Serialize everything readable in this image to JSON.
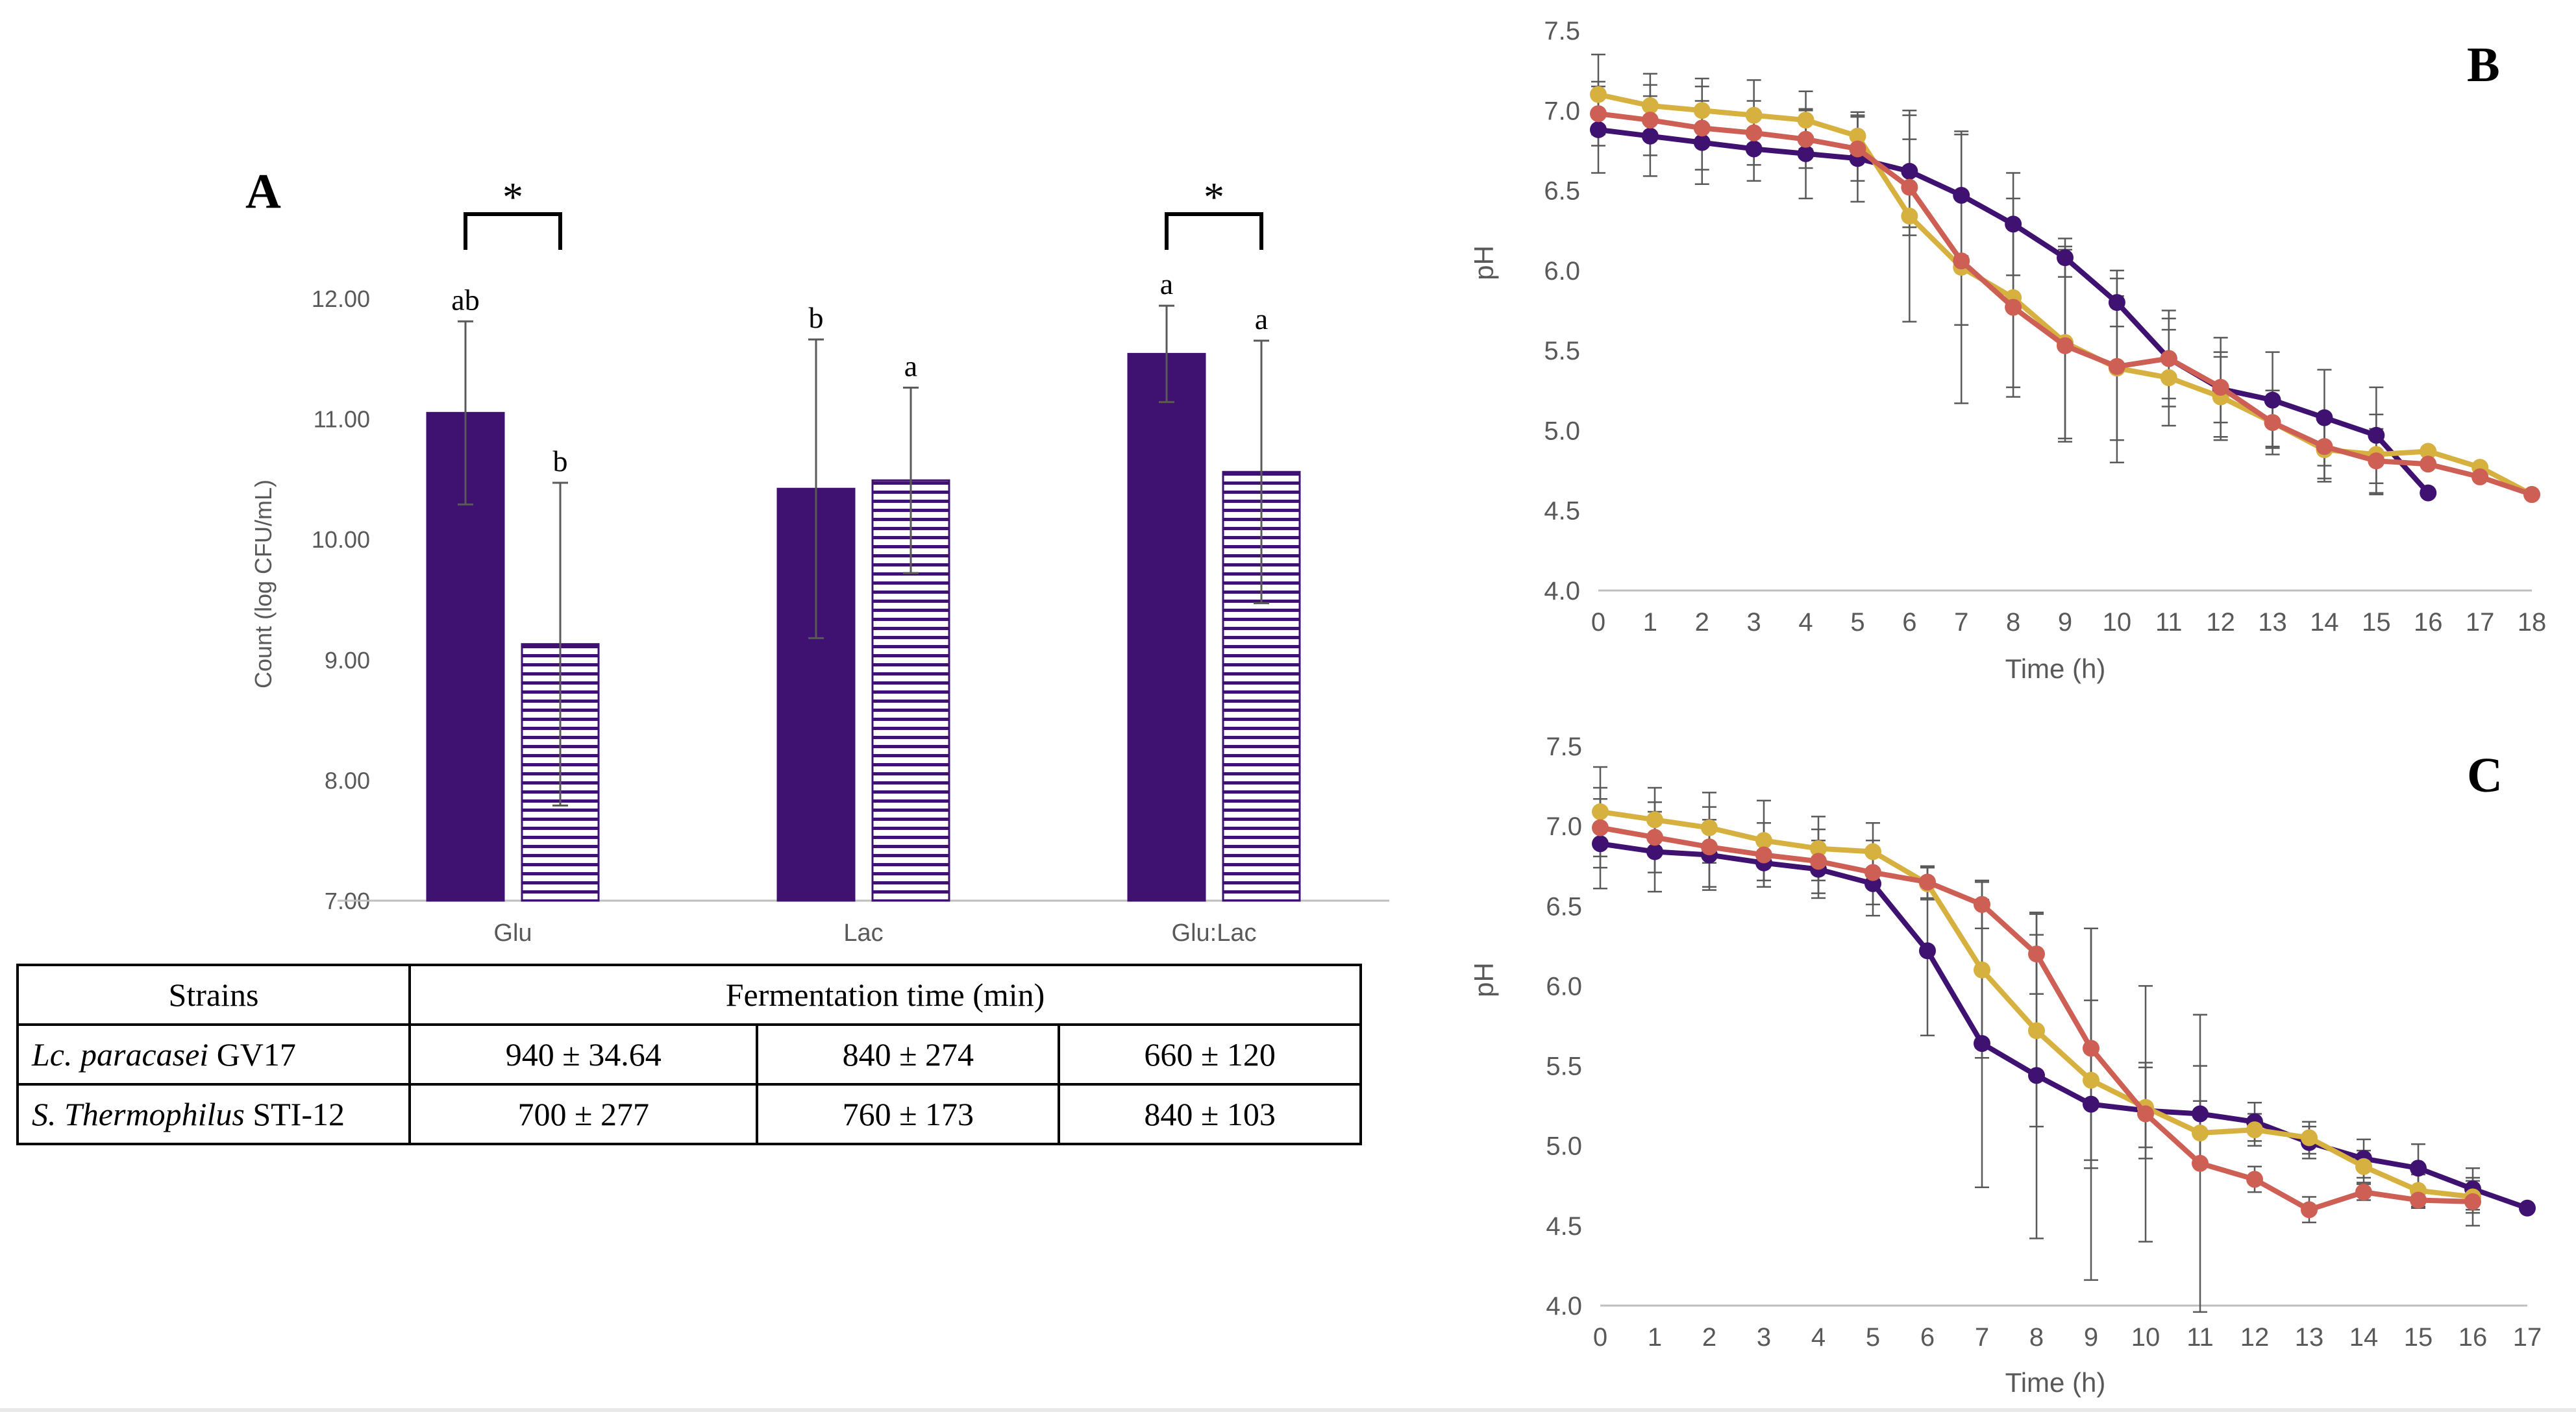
{
  "chart_data": [
    {
      "panel": "A",
      "type": "bar",
      "ylabel": "Count (log CFU/mL)",
      "ylim": [
        7.0,
        12.0
      ],
      "yticks": [
        "7.00",
        "8.00",
        "9.00",
        "10.00",
        "11.00",
        "12.00"
      ],
      "categories": [
        "Glu",
        "Lac",
        "Glu:Lac"
      ],
      "series": [
        {
          "name": "Lc. paracasei GV17",
          "pattern": "solid",
          "values": [
            11.05,
            10.42,
            11.54
          ],
          "errors": [
            0.76,
            1.24,
            0.4
          ],
          "letters": [
            "ab",
            "b",
            "a"
          ]
        },
        {
          "name": "S. Thermophilus STI-12",
          "pattern": "striped",
          "values": [
            9.13,
            10.49,
            10.56
          ],
          "errors": [
            1.34,
            0.77,
            1.09
          ],
          "letters": [
            "b",
            "a",
            "a"
          ]
        }
      ],
      "significance": [
        "*",
        "",
        "*"
      ]
    },
    {
      "panel": "B",
      "type": "line",
      "xlabel": "Time (h)",
      "ylabel": "pH",
      "ylim": [
        4.0,
        7.5
      ],
      "xlim": [
        0,
        18
      ],
      "yticks": [
        "4.0",
        "4.5",
        "5.0",
        "5.5",
        "6.0",
        "6.5",
        "7.0",
        "7.5"
      ],
      "xticks": [
        "0",
        "1",
        "2",
        "3",
        "4",
        "5",
        "6",
        "7",
        "8",
        "9",
        "10",
        "11",
        "12",
        "13",
        "14",
        "15",
        "16",
        "17",
        "18"
      ],
      "series": [
        {
          "name": "Glu",
          "x": [
            0,
            1,
            2,
            3,
            4,
            5,
            6,
            7,
            8,
            9,
            10,
            11,
            12,
            13,
            14,
            15,
            16
          ],
          "y": [
            6.88,
            6.84,
            6.8,
            6.76,
            6.73,
            6.7,
            6.62,
            6.47,
            6.29,
            6.08,
            5.8,
            5.45,
            5.26,
            5.19,
            5.08,
            4.97,
            4.61
          ],
          "err": [
            0.27,
            0.25,
            0.26,
            0.2,
            0.28,
            0.27,
            0.35,
            0.38,
            0.32,
            0.12,
            0.15,
            0.3,
            0.32,
            0.3,
            0.3,
            0.3,
            0.0
          ]
        },
        {
          "name": "Lac",
          "x": [
            0,
            1,
            2,
            3,
            4,
            5,
            6,
            7,
            8,
            9,
            10,
            11,
            12,
            13,
            14,
            15,
            16,
            17,
            18
          ],
          "y": [
            6.98,
            6.94,
            6.89,
            6.86,
            6.82,
            6.76,
            6.52,
            6.06,
            5.77,
            5.53,
            5.4,
            5.45,
            5.27,
            5.05,
            4.9,
            4.81,
            4.79,
            4.71,
            4.6
          ],
          "err": [
            0.2,
            0.22,
            0.26,
            0.2,
            0.18,
            0.2,
            0.3,
            0.4,
            0.5,
            0.6,
            0.6,
            0.25,
            0.22,
            0.2,
            0.2,
            0.2,
            0.0,
            0.0,
            0.0
          ]
        },
        {
          "name": "Glu:Lac",
          "x": [
            0,
            1,
            2,
            3,
            4,
            5,
            6,
            7,
            8,
            9,
            10,
            11,
            12,
            13,
            14,
            15,
            16,
            17,
            18
          ],
          "y": [
            7.1,
            7.03,
            7.0,
            6.97,
            6.94,
            6.84,
            6.34,
            6.02,
            5.83,
            5.55,
            5.39,
            5.33,
            5.21,
            5.05,
            4.88,
            4.85,
            4.87,
            4.77,
            4.6
          ],
          "err": [
            0.25,
            0.2,
            0.2,
            0.22,
            0.18,
            0.15,
            0.66,
            0.85,
            0.62,
            0.6,
            0.45,
            0.3,
            0.25,
            0.15,
            0.2,
            0.25,
            0.0,
            0.0,
            0.0
          ]
        }
      ]
    },
    {
      "panel": "C",
      "type": "line",
      "xlabel": "Time (h)",
      "ylabel": "pH",
      "ylim": [
        4.0,
        7.5
      ],
      "xlim": [
        0,
        17
      ],
      "yticks": [
        "4.0",
        "4.5",
        "5.0",
        "5.5",
        "6.0",
        "6.5",
        "7.0",
        "7.5"
      ],
      "xticks": [
        "0",
        "1",
        "2",
        "3",
        "4",
        "5",
        "6",
        "7",
        "8",
        "9",
        "10",
        "11",
        "12",
        "13",
        "14",
        "15",
        "16",
        "17"
      ],
      "series": [
        {
          "name": "Glu",
          "x": [
            0,
            1,
            2,
            3,
            4,
            5,
            6,
            7,
            8,
            9,
            10,
            11,
            12,
            13,
            14,
            15,
            16,
            17
          ],
          "y": [
            6.89,
            6.84,
            6.82,
            6.77,
            6.73,
            6.64,
            6.22,
            5.64,
            5.44,
            5.26,
            5.22,
            5.2,
            5.15,
            5.02,
            4.92,
            4.86,
            4.73,
            4.61
          ],
          "err": [
            0.28,
            0.25,
            0.22,
            0.15,
            0.18,
            0.2,
            0.53,
            0.9,
            1.02,
            1.1,
            0.3,
            0.3,
            0.12,
            0.1,
            0.12,
            0.15,
            0.13,
            0.0
          ]
        },
        {
          "name": "Lac",
          "x": [
            0,
            1,
            2,
            3,
            4,
            5,
            6,
            7,
            8,
            9,
            10,
            11,
            12,
            13,
            14,
            15,
            16
          ],
          "y": [
            6.99,
            6.93,
            6.87,
            6.82,
            6.78,
            6.71,
            6.65,
            6.51,
            6.2,
            5.61,
            5.2,
            4.89,
            4.79,
            4.6,
            4.71,
            4.66,
            4.65
          ],
          "err": [
            0.25,
            0.22,
            0.25,
            0.2,
            0.2,
            0.2,
            0.1,
            0.15,
            0.25,
            0.75,
            0.8,
            0.93,
            0.08,
            0.08,
            0.05,
            0.05,
            0.15
          ]
        },
        {
          "name": "Glu:Lac",
          "x": [
            0,
            1,
            2,
            3,
            4,
            5,
            6,
            7,
            8,
            9,
            10,
            11,
            12,
            13,
            14,
            15,
            16
          ],
          "y": [
            7.09,
            7.04,
            6.99,
            6.91,
            6.86,
            6.84,
            6.64,
            6.1,
            5.72,
            5.41,
            5.24,
            5.08,
            5.1,
            5.05,
            4.87,
            4.72,
            4.68
          ],
          "err": [
            0.28,
            0.2,
            0.22,
            0.25,
            0.2,
            0.18,
            0.1,
            0.55,
            0.6,
            0.5,
            0.25,
            0.2,
            0.1,
            0.1,
            0.1,
            0.1,
            0.1
          ]
        }
      ]
    }
  ],
  "table": {
    "header": {
      "strains": "Strains",
      "time": "Fermentation time (min)"
    },
    "rows": [
      {
        "name_italic": "Lc. paracasei",
        "name_rest": " GV17",
        "values": [
          "940 ± 34.64",
          "840 ± 274",
          "660 ± 120"
        ]
      },
      {
        "name_italic": "S. Thermophilus",
        "name_rest": " STI-12",
        "values": [
          "700 ± 277",
          "760 ± 173",
          "840 ± 103"
        ]
      }
    ]
  },
  "colors": {
    "purple": "#3f1170",
    "gold": "#d6b13f",
    "red": "#cd5f54",
    "axis": "#bfbfbf",
    "grid_text": "#595959",
    "errbar": "#595959"
  }
}
